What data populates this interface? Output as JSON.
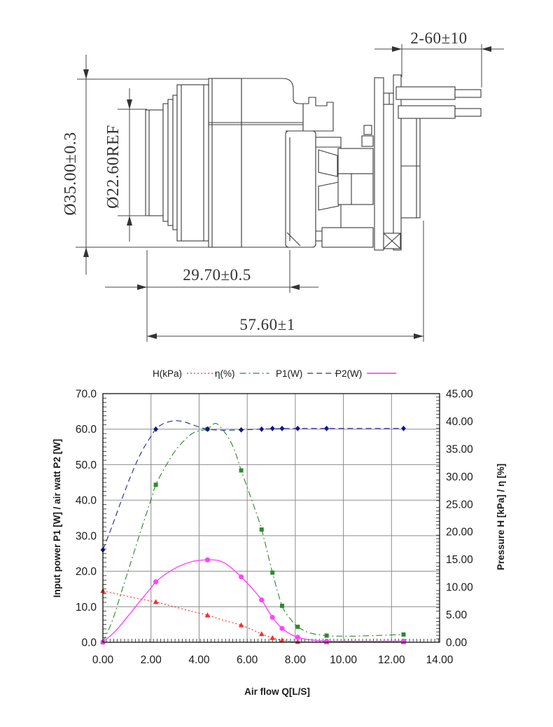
{
  "page": {
    "background": "#ffffff",
    "kind": "blower datasheet: outline drawing and performance curves"
  },
  "drawing": {
    "dimensions": {
      "wire_length": "2-60±10",
      "outer_diameter": "Ø35.00±0.3",
      "ref_diameter": "Ø22.60REF",
      "front_length": "29.70±0.5",
      "total_length": "57.60±1"
    }
  },
  "chart": {
    "legend": [
      {
        "label": "H(kPa)",
        "color": "#ff2a2a",
        "style": "dotted"
      },
      {
        "label": "η(%)",
        "color": "#2e8b2e",
        "style": "dashdot"
      },
      {
        "label": "P1(W)",
        "color": "#2b2b9e",
        "style": "dashed"
      },
      {
        "label": "P2(W)",
        "color": "#ff44ff",
        "style": "solid"
      }
    ],
    "x_axis": {
      "title": "Air flow Q[L/S]",
      "tick_labels": [
        "0.00",
        "2.00",
        "4.00",
        "6.00",
        "8.00",
        "10.00",
        "12.00",
        "14.00"
      ]
    },
    "y_left": {
      "title": "Input power P1 [W] / air watt P2 [W]",
      "tick_labels": [
        "0.0",
        "10.0",
        "20.0",
        "30.0",
        "40.0",
        "50.0",
        "60.0",
        "70.0"
      ]
    },
    "y_right": {
      "title": "Pressure H [kPa] / η [%]",
      "tick_labels": [
        "0.00",
        "5.00",
        "10.00",
        "15.00",
        "20.00",
        "25.00",
        "30.00",
        "35.00",
        "40.00",
        "45.00"
      ]
    },
    "grid_color": "#8c8c8c",
    "border_color": "#111111"
  },
  "chart_data": {
    "type": "line",
    "title": "",
    "xlabel": "Air flow Q[L/S]",
    "x_range": [
      0,
      14
    ],
    "x_major_step": 2,
    "y_left_axis": {
      "label": "Input power P1 [W] / air watt P2 [W]",
      "range": [
        0,
        70
      ],
      "major_step": 10
    },
    "y_right_axis": {
      "label": "Pressure H [kPa] / η [%]",
      "range": [
        0,
        45
      ],
      "major_step": 5
    },
    "legend_position": "top-center",
    "grid": true,
    "series": [
      {
        "name": "H(kPa)",
        "axis": "right",
        "unit": "kPa",
        "color": "#ff2a2a",
        "line_style": "dotted",
        "marker": "triangle",
        "points": [
          [
            0,
            9.3
          ],
          [
            2.2,
            7.3
          ],
          [
            4.35,
            4.9
          ],
          [
            5.75,
            3.1
          ],
          [
            6.6,
            1.5
          ],
          [
            7.05,
            0.8
          ],
          [
            7.45,
            0.35
          ],
          [
            8.1,
            0.1
          ],
          [
            9.3,
            0.05
          ],
          [
            12.5,
            0.05
          ]
        ],
        "curve": [
          [
            0,
            9.3
          ],
          [
            0.7,
            8.65
          ],
          [
            1.4,
            7.95
          ],
          [
            2.2,
            7.3
          ],
          [
            2.9,
            6.5
          ],
          [
            3.6,
            5.7
          ],
          [
            4.35,
            4.9
          ],
          [
            5.0,
            4.0
          ],
          [
            5.75,
            3.1
          ],
          [
            6.2,
            2.3
          ],
          [
            6.6,
            1.5
          ],
          [
            7.05,
            0.8
          ],
          [
            7.45,
            0.35
          ],
          [
            7.8,
            0.15
          ],
          [
            8.1,
            0.1
          ],
          [
            9.3,
            0.05
          ],
          [
            10.5,
            0.04
          ],
          [
            12.5,
            0.04
          ]
        ]
      },
      {
        "name": "η(%)",
        "axis": "right",
        "unit": "%",
        "color": "#2e8b2e",
        "line_style": "dashdot",
        "marker": "square",
        "points": [
          [
            0,
            0
          ],
          [
            2.2,
            28.5
          ],
          [
            4.35,
            38.6
          ],
          [
            5.75,
            31.1
          ],
          [
            6.6,
            20.4
          ],
          [
            7.05,
            12.6
          ],
          [
            7.45,
            6.6
          ],
          [
            8.1,
            2.8
          ],
          [
            9.3,
            1.2
          ],
          [
            12.5,
            1.4
          ]
        ],
        "curve": [
          [
            0,
            0
          ],
          [
            0.4,
            4
          ],
          [
            0.8,
            9.5
          ],
          [
            1.2,
            15
          ],
          [
            1.6,
            20.5
          ],
          [
            2.0,
            25.8
          ],
          [
            2.2,
            28.5
          ],
          [
            2.6,
            31.8
          ],
          [
            3.0,
            34.6
          ],
          [
            3.4,
            36.6
          ],
          [
            3.8,
            38.0
          ],
          [
            4.35,
            38.6
          ],
          [
            4.7,
            39.6
          ],
          [
            5.1,
            37.8
          ],
          [
            5.45,
            35.0
          ],
          [
            5.75,
            31.1
          ],
          [
            6.2,
            25.6
          ],
          [
            6.6,
            20.4
          ],
          [
            7.05,
            12.6
          ],
          [
            7.45,
            6.6
          ],
          [
            7.8,
            4.2
          ],
          [
            8.1,
            2.8
          ],
          [
            8.6,
            1.7
          ],
          [
            9.3,
            1.2
          ],
          [
            10.2,
            1.1
          ],
          [
            11.2,
            1.2
          ],
          [
            12.5,
            1.4
          ]
        ]
      },
      {
        "name": "P1(W)",
        "axis": "left",
        "unit": "W",
        "color": "#2b2b9e",
        "line_style": "dashed",
        "marker": "diamond",
        "points": [
          [
            0,
            26
          ],
          [
            2.2,
            60
          ],
          [
            4.35,
            60
          ],
          [
            5.75,
            59.8
          ],
          [
            6.6,
            60
          ],
          [
            7.05,
            60.2
          ],
          [
            7.45,
            60.2
          ],
          [
            8.1,
            60.2
          ],
          [
            9.3,
            60.2
          ],
          [
            12.5,
            60.2
          ]
        ],
        "curve": [
          [
            0,
            26
          ],
          [
            0.4,
            33
          ],
          [
            0.8,
            40.5
          ],
          [
            1.2,
            47.5
          ],
          [
            1.6,
            53.5
          ],
          [
            2.0,
            58
          ],
          [
            2.2,
            60
          ],
          [
            2.5,
            61.5
          ],
          [
            2.9,
            62.3
          ],
          [
            3.3,
            62.2
          ],
          [
            3.7,
            61.3
          ],
          [
            4.1,
            60.4
          ],
          [
            4.35,
            60
          ],
          [
            4.9,
            59.7
          ],
          [
            5.75,
            59.8
          ],
          [
            7.0,
            60.1
          ],
          [
            8.1,
            60.2
          ],
          [
            9.3,
            60.2
          ],
          [
            12.5,
            60.2
          ]
        ]
      },
      {
        "name": "P2(W)",
        "axis": "left",
        "unit": "W",
        "color": "#ff44ff",
        "line_style": "solid",
        "marker": "circle",
        "points": [
          [
            0,
            0
          ],
          [
            2.2,
            17
          ],
          [
            4.35,
            23.2
          ],
          [
            5.75,
            18.4
          ],
          [
            6.6,
            11.9
          ],
          [
            7.05,
            7.0
          ],
          [
            7.45,
            3.9
          ],
          [
            8.1,
            1.4
          ],
          [
            9.3,
            0.3
          ],
          [
            12.5,
            0.3
          ]
        ],
        "curve": [
          [
            0,
            0
          ],
          [
            0.5,
            3
          ],
          [
            1.0,
            7
          ],
          [
            1.5,
            11.2
          ],
          [
            2.0,
            15.3
          ],
          [
            2.2,
            17
          ],
          [
            2.7,
            19.6
          ],
          [
            3.2,
            21.5
          ],
          [
            3.7,
            22.7
          ],
          [
            4.1,
            23.1
          ],
          [
            4.35,
            23.2
          ],
          [
            4.8,
            23.0
          ],
          [
            5.2,
            21.7
          ],
          [
            5.75,
            18.4
          ],
          [
            6.2,
            15.2
          ],
          [
            6.6,
            11.9
          ],
          [
            7.05,
            7.0
          ],
          [
            7.45,
            3.9
          ],
          [
            7.8,
            2.3
          ],
          [
            8.1,
            1.4
          ],
          [
            8.6,
            0.7
          ],
          [
            9.3,
            0.3
          ],
          [
            10.5,
            0.25
          ],
          [
            12.5,
            0.3
          ]
        ]
      }
    ]
  }
}
